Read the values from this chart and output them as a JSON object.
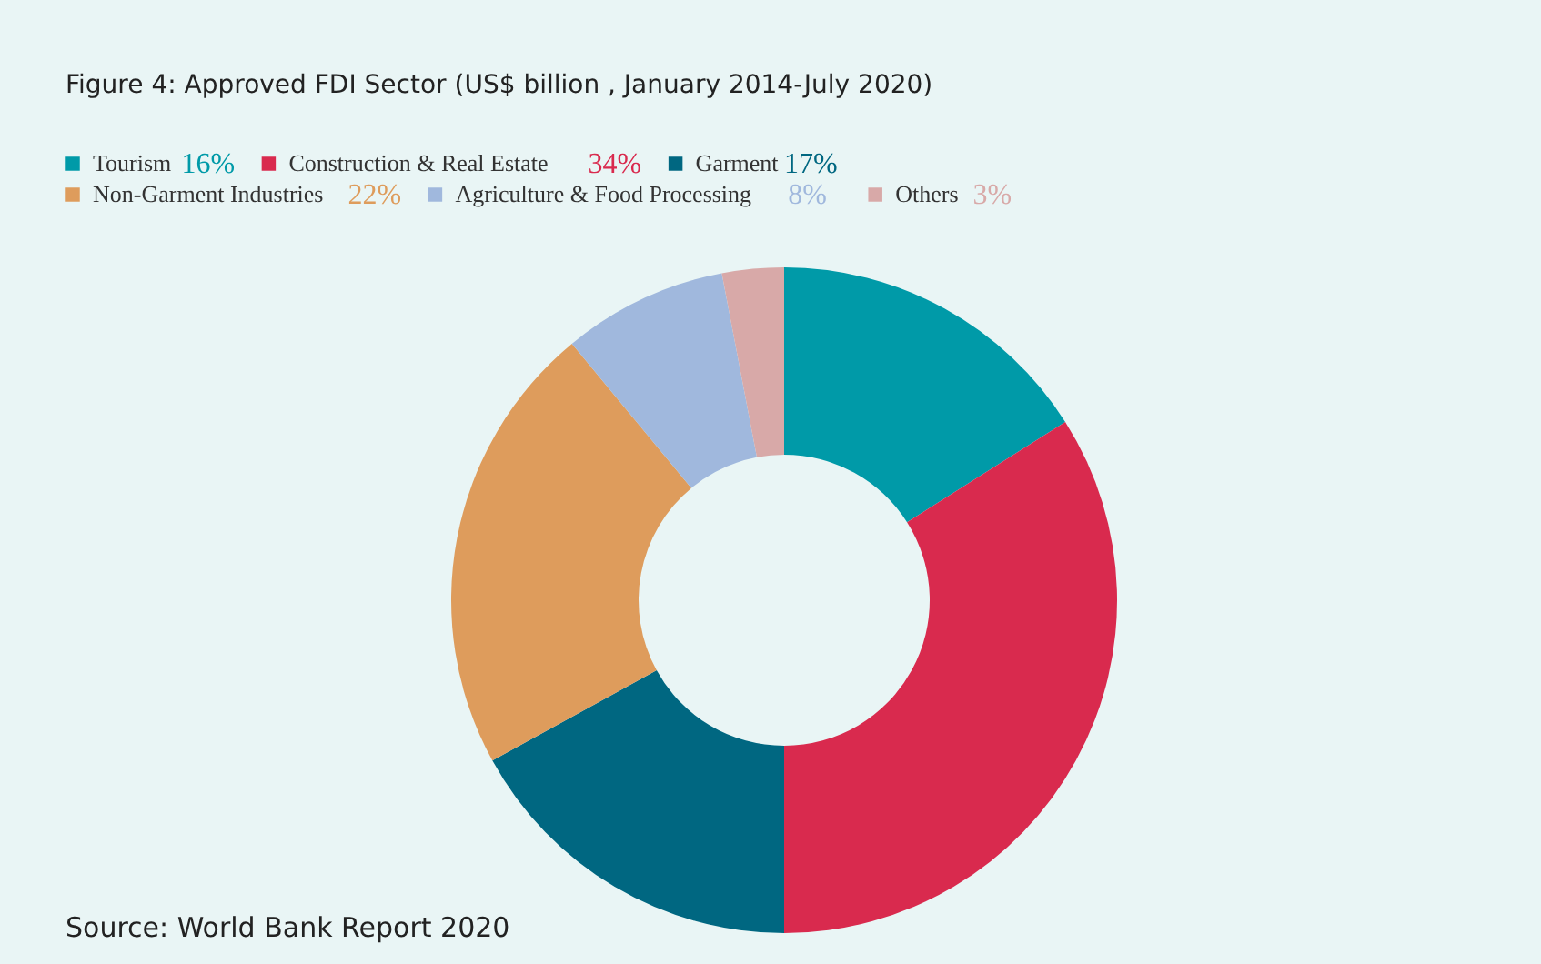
{
  "chart_data": {
    "type": "donut",
    "title": "Figure 4: Approved FDI Sector (US$ billion , January 2014-July 2020)",
    "categories": [
      "Tourism",
      "Construction & Real Estate",
      "Garment",
      "Non-Garment Industries",
      "Agriculture & Food Processing",
      "Others"
    ],
    "values": [
      16,
      34,
      17,
      22,
      8,
      3
    ],
    "colors": [
      "#009aa8",
      "#d92a4e",
      "#006781",
      "#de9c5c",
      "#a0b8dd",
      "#d8a9a8"
    ],
    "value_labels": [
      "16%",
      "34%",
      "17%",
      "22%",
      "8%",
      "3%"
    ],
    "legend": "top left",
    "annotations": [
      "Source: World Bank Report 2020"
    ]
  }
}
